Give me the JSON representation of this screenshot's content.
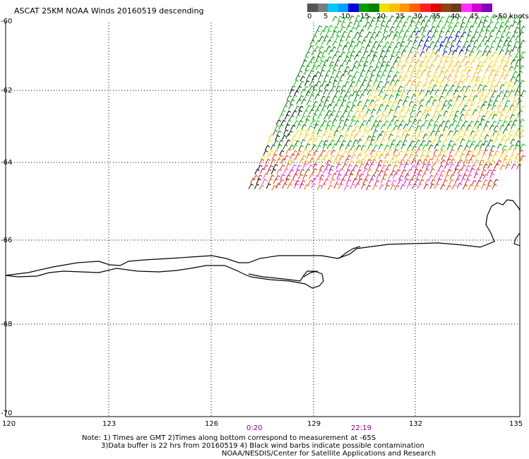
{
  "title": "ASCAT 25KM NOAA Winds 20160519 descending",
  "colorbar": {
    "labels": [
      "0",
      "5",
      "10",
      "15",
      "20",
      "25",
      "30",
      "35",
      "40",
      "45"
    ],
    "units_label": ">50 knots",
    "colors": [
      "#555555",
      "#7a7a7a",
      "#00c8ff",
      "#00a0ff",
      "#0000d8",
      "#00a000",
      "#008000",
      "#f0e000",
      "#ffc000",
      "#ff9600",
      "#ff6000",
      "#ff2020",
      "#e00000",
      "#8b4513",
      "#6b3a1a",
      "#ff30ff",
      "#d000d0",
      "#8000c0"
    ]
  },
  "axes": {
    "lat_labels": [
      "-60",
      "-62",
      "-64",
      "-66",
      "-68",
      "-70"
    ],
    "lon_labels": [
      "120",
      "123",
      "126",
      "129",
      "132",
      "135"
    ]
  },
  "times": {
    "t1": "0:20",
    "t2": "22:19"
  },
  "notes": {
    "line1": "Note: 1) Times are GMT 2)Times along bottom correspond to measurement at -65S",
    "line2": "3)Data buffer is 22 hrs from 20160519 4) Black wind barbs indicate possible contamination",
    "line3": "NOAA/NESDIS/Center for Satellite Applications and Research"
  },
  "palette": {
    "grid": "#000000",
    "coast": "#000000",
    "time_color": "#8b008b"
  }
}
